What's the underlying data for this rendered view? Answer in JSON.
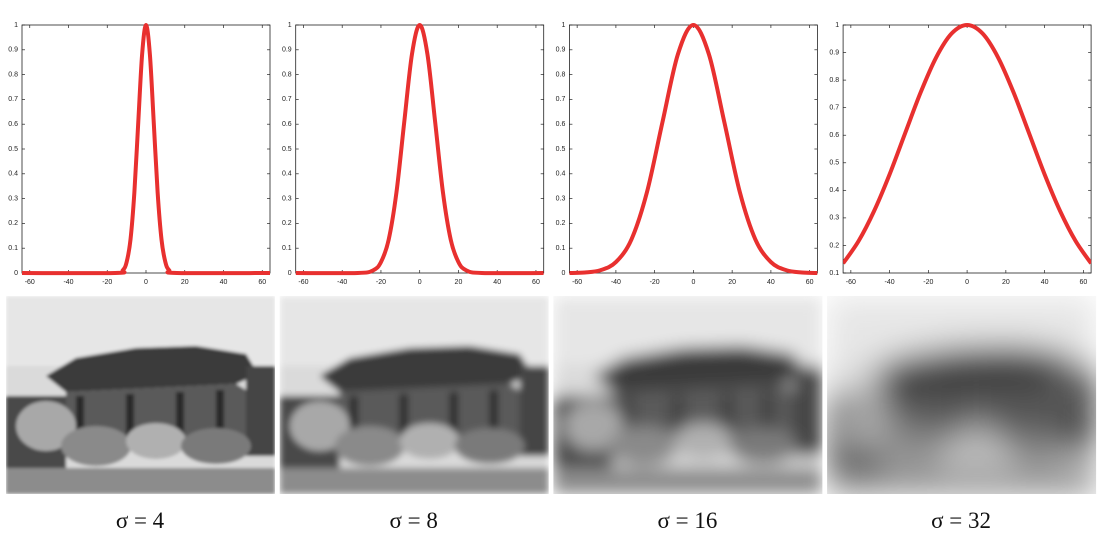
{
  "chart_data": [
    {
      "type": "line",
      "caption": "σ = 4",
      "x": [
        -64,
        -16,
        -12,
        -10,
        -8,
        -6,
        -4,
        -2,
        0,
        2,
        4,
        6,
        8,
        10,
        12,
        16,
        64
      ],
      "series": [
        {
          "color": "#e8302f",
          "values": [
            0,
            0,
            0.011,
            0.044,
            0.135,
            0.325,
            0.607,
            0.882,
            1,
            0.882,
            0.607,
            0.325,
            0.135,
            0.044,
            0.011,
            0,
            0
          ]
        }
      ],
      "xlim": [
        -64,
        64
      ],
      "ylim": [
        0,
        1
      ],
      "xticks": [
        -60,
        -40,
        -20,
        0,
        20,
        40,
        60
      ],
      "yticks": [
        0,
        0.1,
        0.2,
        0.3,
        0.4,
        0.5,
        0.6,
        0.7,
        0.8,
        0.9,
        1
      ],
      "blur": 1.5
    },
    {
      "type": "line",
      "caption": "σ = 8",
      "x": [
        -64,
        -32,
        -24,
        -20,
        -16,
        -12,
        -8,
        -4,
        0,
        4,
        8,
        12,
        16,
        20,
        24,
        32,
        64
      ],
      "series": [
        {
          "color": "#e8302f",
          "values": [
            0,
            0,
            0.011,
            0.044,
            0.135,
            0.325,
            0.607,
            0.882,
            1,
            0.882,
            0.607,
            0.325,
            0.135,
            0.044,
            0.011,
            0,
            0
          ]
        }
      ],
      "xlim": [
        -64,
        64
      ],
      "ylim": [
        0,
        1
      ],
      "xticks": [
        -60,
        -40,
        -20,
        0,
        20,
        40,
        60
      ],
      "yticks": [
        0,
        0.1,
        0.2,
        0.3,
        0.4,
        0.5,
        0.6,
        0.7,
        0.8,
        0.9,
        1
      ],
      "blur": 3.5
    },
    {
      "type": "line",
      "caption": "σ = 16",
      "x": [
        -64,
        -56,
        -48,
        -40,
        -32,
        -24,
        -16,
        -8,
        0,
        8,
        16,
        24,
        32,
        40,
        48,
        56,
        64
      ],
      "series": [
        {
          "color": "#e8302f",
          "values": [
            0,
            0.002,
            0.011,
            0.044,
            0.135,
            0.325,
            0.607,
            0.882,
            1,
            0.882,
            0.607,
            0.325,
            0.135,
            0.044,
            0.011,
            0.002,
            0
          ]
        }
      ],
      "xlim": [
        -64,
        64
      ],
      "ylim": [
        0,
        1
      ],
      "xticks": [
        -60,
        -40,
        -20,
        0,
        20,
        40,
        60
      ],
      "yticks": [
        0,
        0.1,
        0.2,
        0.3,
        0.4,
        0.5,
        0.6,
        0.7,
        0.8,
        0.9,
        1
      ],
      "blur": 8
    },
    {
      "type": "line",
      "caption": "σ = 32",
      "x": [
        -64,
        -56,
        -48,
        -40,
        -32,
        -24,
        -16,
        -8,
        0,
        8,
        16,
        24,
        32,
        40,
        48,
        56,
        64
      ],
      "series": [
        {
          "color": "#e8302f",
          "values": [
            0.135,
            0.216,
            0.325,
            0.458,
            0.607,
            0.755,
            0.882,
            0.969,
            1,
            0.969,
            0.882,
            0.755,
            0.607,
            0.458,
            0.325,
            0.216,
            0.135
          ]
        }
      ],
      "xlim": [
        -64,
        64
      ],
      "ylim": [
        0.1,
        1
      ],
      "xticks": [
        -60,
        -40,
        -20,
        0,
        20,
        40,
        60
      ],
      "yticks": [
        0.1,
        0.2,
        0.3,
        0.4,
        0.5,
        0.6,
        0.7,
        0.8,
        0.9,
        1
      ],
      "blur": 16
    }
  ]
}
